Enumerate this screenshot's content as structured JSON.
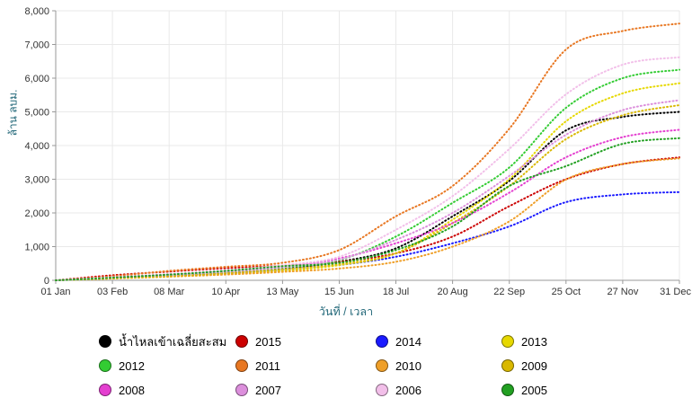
{
  "styles": {
    "background": "#ffffff",
    "axis_color": "#999999",
    "grid_color": "#e9e9e9",
    "tick_label_color": "#333333",
    "axis_title_color": "#24697a",
    "legend_label_color": "#000000"
  },
  "chart_data": {
    "type": "line",
    "title": "",
    "xlabel": "วันที่ / เวลา",
    "ylabel": "ล้าน ลบม.",
    "ylim": [
      0,
      8000
    ],
    "grid": true,
    "legend_position": "bottom",
    "line_style": "dotted",
    "y_ticks": [
      "0",
      "1,000",
      "2,000",
      "3,000",
      "4,000",
      "5,000",
      "6,000",
      "7,000",
      "8,000"
    ],
    "x": [
      "01 Jan",
      "03 Feb",
      "08 Mar",
      "10 Apr",
      "13 May",
      "15 Jun",
      "18 Jul",
      "20 Aug",
      "22 Sep",
      "25 Oct",
      "27 Nov",
      "31 Dec"
    ],
    "series": [
      {
        "name": "น้ำไหลเข้าเฉลี่ยสะสม",
        "color": "#000000",
        "values": [
          0,
          70,
          140,
          220,
          330,
          550,
          950,
          1900,
          2950,
          4450,
          4850,
          5000
        ]
      },
      {
        "name": "2015",
        "color": "#cc0000",
        "values": [
          0,
          150,
          260,
          360,
          440,
          550,
          800,
          1300,
          2200,
          3000,
          3450,
          3650
        ]
      },
      {
        "name": "2014",
        "color": "#1a1aff",
        "values": [
          0,
          60,
          120,
          200,
          300,
          450,
          700,
          1100,
          1600,
          2320,
          2550,
          2620
        ]
      },
      {
        "name": "2013",
        "color": "#e6d800",
        "values": [
          0,
          50,
          110,
          180,
          280,
          450,
          800,
          1800,
          3000,
          4720,
          5550,
          5850
        ]
      },
      {
        "name": "2012",
        "color": "#33cc33",
        "values": [
          0,
          80,
          160,
          260,
          380,
          600,
          1300,
          2300,
          3350,
          5120,
          6000,
          6250
        ]
      },
      {
        "name": "2011",
        "color": "#e87722",
        "values": [
          0,
          120,
          280,
          400,
          520,
          900,
          1900,
          2800,
          4500,
          6850,
          7400,
          7620
        ]
      },
      {
        "name": "2010",
        "color": "#ef9f28",
        "values": [
          0,
          60,
          110,
          170,
          250,
          350,
          550,
          1000,
          1750,
          2990,
          3450,
          3620
        ]
      },
      {
        "name": "2009",
        "color": "#d9b800",
        "values": [
          0,
          70,
          130,
          210,
          320,
          480,
          800,
          1700,
          2800,
          4190,
          4900,
          5200
        ]
      },
      {
        "name": "2008",
        "color": "#e43fd0",
        "values": [
          0,
          90,
          180,
          280,
          400,
          650,
          1100,
          1700,
          2600,
          3650,
          4250,
          4470
        ]
      },
      {
        "name": "2007",
        "color": "#dc8fdc",
        "values": [
          0,
          80,
          160,
          260,
          390,
          620,
          1200,
          2000,
          3100,
          4320,
          5050,
          5350
        ]
      },
      {
        "name": "2006",
        "color": "#f2bfe9",
        "values": [
          0,
          90,
          180,
          300,
          450,
          700,
          1500,
          2500,
          3900,
          5520,
          6400,
          6620
        ]
      },
      {
        "name": "2005",
        "color": "#22a022",
        "values": [
          0,
          80,
          170,
          280,
          420,
          520,
          900,
          1600,
          2800,
          3390,
          4050,
          4220
        ]
      }
    ]
  }
}
